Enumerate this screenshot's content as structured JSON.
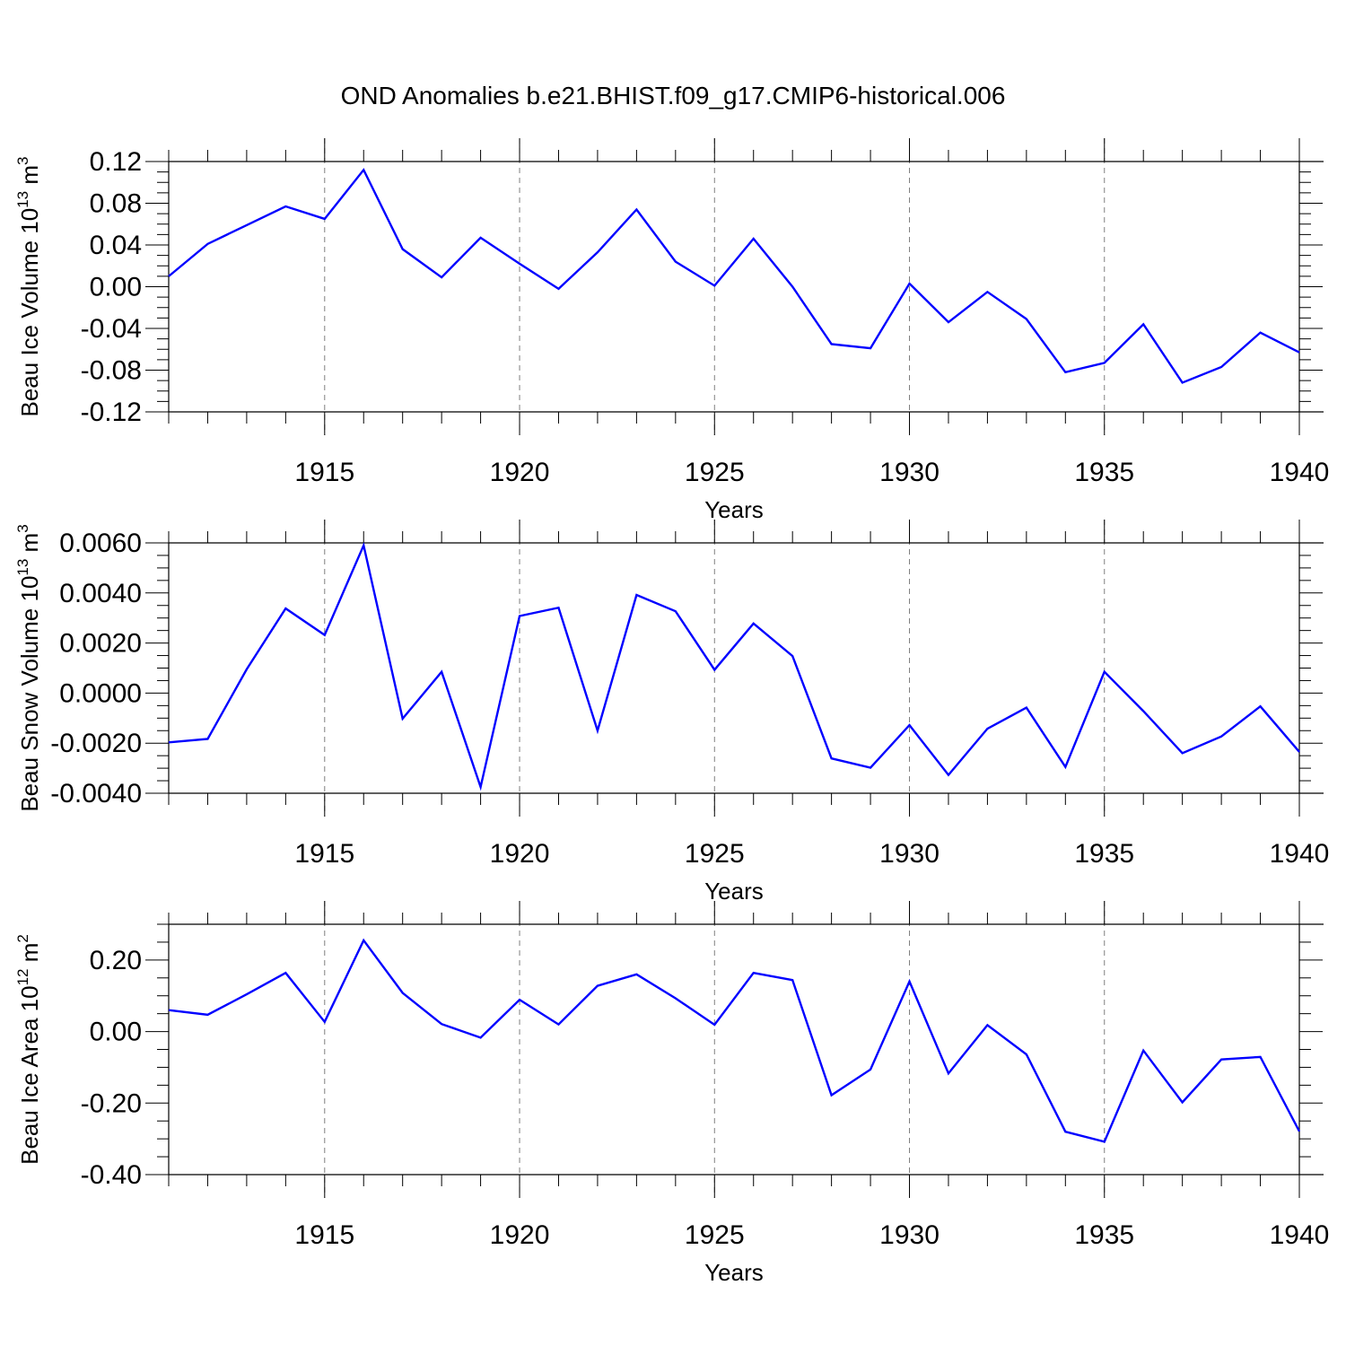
{
  "title": "OND Anomalies b.e21.BHIST.f09_g17.CMIP6-historical.006",
  "colors": {
    "line": "#0000ff",
    "axis": "#000000",
    "grid": "#7f7f7f",
    "background": "#ffffff"
  },
  "chart_data": [
    {
      "type": "line",
      "ylabel_main": "Beau Ice Volume 10",
      "ylabel_exp": "13",
      "ylabel_unit": " m",
      "ylabel_unit_exp": "3",
      "xlabel": "Years",
      "xlim": [
        1911,
        1940
      ],
      "ylim": [
        -0.12,
        0.12
      ],
      "yticks": [
        -0.12,
        -0.08,
        -0.04,
        0.0,
        0.04,
        0.08,
        0.12
      ],
      "ytick_labels": [
        "-0.12",
        "-0.08",
        "-0.04",
        "0.00",
        "0.04",
        "0.08",
        "0.12"
      ],
      "xticks": [
        1915,
        1920,
        1925,
        1930,
        1935,
        1940
      ],
      "xtick_labels": [
        "1915",
        "1920",
        "1925",
        "1930",
        "1935",
        "1940"
      ],
      "x": [
        1911,
        1912,
        1913,
        1914,
        1915,
        1916,
        1917,
        1918,
        1919,
        1920,
        1921,
        1922,
        1923,
        1924,
        1925,
        1926,
        1927,
        1928,
        1929,
        1930,
        1931,
        1932,
        1933,
        1934,
        1935,
        1936,
        1937,
        1938,
        1939,
        1940
      ],
      "series": [
        {
          "values": [
            0.01,
            0.041,
            0.059,
            0.077,
            0.065,
            0.112,
            0.036,
            0.009,
            0.047,
            0.022,
            -0.002,
            0.033,
            0.074,
            0.024,
            0.001,
            0.046,
            0.0,
            -0.055,
            -0.059,
            0.003,
            -0.034,
            -0.005,
            -0.031,
            -0.082,
            -0.073,
            -0.036,
            -0.092,
            -0.077,
            -0.044,
            -0.063
          ]
        }
      ]
    },
    {
      "type": "line",
      "ylabel_main": "Beau Snow Volume 10",
      "ylabel_exp": "13",
      "ylabel_unit": " m",
      "ylabel_unit_exp": "3",
      "xlabel": "Years",
      "xlim": [
        1911,
        1940
      ],
      "ylim": [
        -0.004,
        0.006
      ],
      "yticks": [
        -0.004,
        -0.002,
        0.0,
        0.002,
        0.004,
        0.006
      ],
      "ytick_labels": [
        "-0.0040",
        "-0.0020",
        "0.0000",
        "0.0020",
        "0.0040",
        "0.0060"
      ],
      "xticks": [
        1915,
        1920,
        1925,
        1930,
        1935,
        1940
      ],
      "xtick_labels": [
        "1915",
        "1920",
        "1925",
        "1930",
        "1935",
        "1940"
      ],
      "x": [
        1911,
        1912,
        1913,
        1914,
        1915,
        1916,
        1917,
        1918,
        1919,
        1920,
        1921,
        1922,
        1923,
        1924,
        1925,
        1926,
        1927,
        1928,
        1929,
        1930,
        1931,
        1932,
        1933,
        1934,
        1935,
        1936,
        1937,
        1938,
        1939,
        1940
      ],
      "series": [
        {
          "values": [
            -0.00197,
            -0.00183,
            0.00095,
            0.00338,
            0.00232,
            0.0059,
            -0.00102,
            0.00085,
            -0.00375,
            0.00308,
            0.00341,
            -0.0015,
            0.00392,
            0.00327,
            0.00093,
            0.00278,
            0.00148,
            -0.00261,
            -0.00298,
            -0.00128,
            -0.00327,
            -0.00142,
            -0.00058,
            -0.00295,
            0.00085,
            -0.00072,
            -0.0024,
            -0.00173,
            -0.00053,
            -0.00235
          ]
        }
      ]
    },
    {
      "type": "line",
      "ylabel_main": "Beau Ice Area 10",
      "ylabel_exp": "12",
      "ylabel_unit": " m",
      "ylabel_unit_exp": "2",
      "xlabel": "Years",
      "xlim": [
        1911,
        1940
      ],
      "ylim": [
        -0.4,
        0.3
      ],
      "yticks": [
        -0.4,
        -0.2,
        0.0,
        0.2
      ],
      "ytick_labels": [
        "-0.40",
        "-0.20",
        "0.00",
        "0.20"
      ],
      "xticks": [
        1915,
        1920,
        1925,
        1930,
        1935,
        1940
      ],
      "xtick_labels": [
        "1915",
        "1920",
        "1925",
        "1930",
        "1935",
        "1940"
      ],
      "x": [
        1911,
        1912,
        1913,
        1914,
        1915,
        1916,
        1917,
        1918,
        1919,
        1920,
        1921,
        1922,
        1923,
        1924,
        1925,
        1926,
        1927,
        1928,
        1929,
        1930,
        1931,
        1932,
        1933,
        1934,
        1935,
        1936,
        1937,
        1938,
        1939,
        1940
      ],
      "series": [
        {
          "values": [
            0.06,
            0.047,
            0.104,
            0.164,
            0.027,
            0.255,
            0.108,
            0.021,
            -0.017,
            0.089,
            0.02,
            0.128,
            0.16,
            0.093,
            0.019,
            0.164,
            0.144,
            -0.178,
            -0.106,
            0.14,
            -0.117,
            0.018,
            -0.064,
            -0.28,
            -0.308,
            -0.053,
            -0.198,
            -0.078,
            -0.071,
            -0.279
          ]
        }
      ]
    }
  ]
}
